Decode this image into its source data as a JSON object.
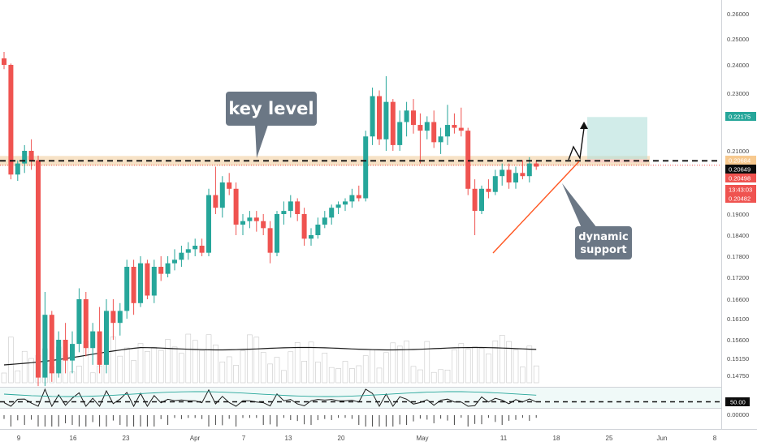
{
  "colors": {
    "up": "#26a69a",
    "down": "#ef5350",
    "callout": "#6b7785",
    "zone": "#f7e2c6",
    "target": "#b2dfdb",
    "trend": "#ff5722",
    "price_badge": "#0c0c0c",
    "red_badge": "#ef5350",
    "teal_badge": "#26a69a"
  },
  "annotations": {
    "key_level": "key level",
    "dynamic_support_1": "dynamic",
    "dynamic_support_2": "support"
  },
  "price_axis": {
    "ticks": [
      "0.26000",
      "0.25000",
      "0.24000",
      "0.23000",
      "0.21000",
      "0.19000",
      "0.18400",
      "0.17800",
      "0.17200",
      "0.16600",
      "0.16100",
      "0.15600",
      "0.15150",
      "0.14750"
    ],
    "badges": {
      "target": "0.22175",
      "key_level": "0.20684",
      "last_price": "0.20649",
      "red_1": "0.20498",
      "countdown": "13:43:03",
      "red_2": "0.20482"
    }
  },
  "indicator": {
    "level_label": "50.00",
    "zero_label": "0.00000"
  },
  "time_axis": {
    "labels": [
      "9",
      "16",
      "23",
      "Apr",
      "7",
      "13",
      "20",
      "May",
      "11",
      "18",
      "25",
      "Jun",
      "8"
    ]
  },
  "chart_data": {
    "type": "candlestick",
    "key_level": 0.20684,
    "series": [
      {
        "date": "Mar 7",
        "o": 0.2425,
        "h": 0.245,
        "l": 0.2385,
        "c": 0.24
      },
      {
        "date": "Mar 8",
        "o": 0.24,
        "h": 0.2405,
        "l": 0.201,
        "c": 0.2025
      },
      {
        "date": "Mar 9",
        "o": 0.2025,
        "h": 0.207,
        "l": 0.2005,
        "c": 0.206
      },
      {
        "date": "Mar 10",
        "o": 0.206,
        "h": 0.212,
        "l": 0.203,
        "c": 0.21
      },
      {
        "date": "Mar 11",
        "o": 0.21,
        "h": 0.214,
        "l": 0.204,
        "c": 0.207
      },
      {
        "date": "Mar 12",
        "o": 0.207,
        "h": 0.2085,
        "l": 0.145,
        "c": 0.147
      },
      {
        "date": "Mar 13",
        "o": 0.147,
        "h": 0.168,
        "l": 0.145,
        "c": 0.162
      },
      {
        "date": "Mar 14",
        "o": 0.162,
        "h": 0.163,
        "l": 0.146,
        "c": 0.148
      },
      {
        "date": "Mar 15",
        "o": 0.148,
        "h": 0.158,
        "l": 0.147,
        "c": 0.156
      },
      {
        "date": "Mar 16",
        "o": 0.156,
        "h": 0.16,
        "l": 0.148,
        "c": 0.151
      },
      {
        "date": "Mar 17",
        "o": 0.151,
        "h": 0.158,
        "l": 0.148,
        "c": 0.155
      },
      {
        "date": "Mar 18",
        "o": 0.155,
        "h": 0.169,
        "l": 0.153,
        "c": 0.166
      },
      {
        "date": "Mar 19",
        "o": 0.166,
        "h": 0.168,
        "l": 0.152,
        "c": 0.154
      },
      {
        "date": "Mar 20",
        "o": 0.154,
        "h": 0.16,
        "l": 0.15,
        "c": 0.158
      },
      {
        "date": "Mar 21",
        "o": 0.158,
        "h": 0.164,
        "l": 0.148,
        "c": 0.15
      },
      {
        "date": "Mar 22",
        "o": 0.15,
        "h": 0.166,
        "l": 0.148,
        "c": 0.163
      },
      {
        "date": "Mar 23",
        "o": 0.163,
        "h": 0.166,
        "l": 0.156,
        "c": 0.16
      },
      {
        "date": "Mar 24",
        "o": 0.16,
        "h": 0.165,
        "l": 0.157,
        "c": 0.163
      },
      {
        "date": "Mar 25",
        "o": 0.163,
        "h": 0.177,
        "l": 0.161,
        "c": 0.175
      },
      {
        "date": "Mar 26",
        "o": 0.175,
        "h": 0.177,
        "l": 0.162,
        "c": 0.165
      },
      {
        "date": "Mar 27",
        "o": 0.165,
        "h": 0.178,
        "l": 0.164,
        "c": 0.176
      },
      {
        "date": "Mar 28",
        "o": 0.176,
        "h": 0.177,
        "l": 0.166,
        "c": 0.167
      },
      {
        "date": "Mar 29",
        "o": 0.167,
        "h": 0.177,
        "l": 0.165,
        "c": 0.175
      },
      {
        "date": "Mar 30",
        "o": 0.175,
        "h": 0.178,
        "l": 0.171,
        "c": 0.173
      },
      {
        "date": "Mar 31",
        "o": 0.173,
        "h": 0.178,
        "l": 0.172,
        "c": 0.176
      },
      {
        "date": "Apr 1",
        "o": 0.176,
        "h": 0.18,
        "l": 0.174,
        "c": 0.177
      },
      {
        "date": "Apr 2",
        "o": 0.177,
        "h": 0.181,
        "l": 0.175,
        "c": 0.179
      },
      {
        "date": "Apr 3",
        "o": 0.179,
        "h": 0.182,
        "l": 0.177,
        "c": 0.18
      },
      {
        "date": "Apr 4",
        "o": 0.18,
        "h": 0.183,
        "l": 0.178,
        "c": 0.181
      },
      {
        "date": "Apr 5",
        "o": 0.181,
        "h": 0.183,
        "l": 0.178,
        "c": 0.179
      },
      {
        "date": "Apr 6",
        "o": 0.179,
        "h": 0.198,
        "l": 0.178,
        "c": 0.196
      },
      {
        "date": "Apr 7",
        "o": 0.196,
        "h": 0.205,
        "l": 0.19,
        "c": 0.192
      },
      {
        "date": "Apr 8",
        "o": 0.192,
        "h": 0.202,
        "l": 0.189,
        "c": 0.2
      },
      {
        "date": "Apr 9",
        "o": 0.2,
        "h": 0.203,
        "l": 0.196,
        "c": 0.198
      },
      {
        "date": "Apr 10",
        "o": 0.198,
        "h": 0.2,
        "l": 0.184,
        "c": 0.187
      },
      {
        "date": "Apr 11",
        "o": 0.187,
        "h": 0.19,
        "l": 0.184,
        "c": 0.188
      },
      {
        "date": "Apr 12",
        "o": 0.188,
        "h": 0.191,
        "l": 0.186,
        "c": 0.189
      },
      {
        "date": "Apr 13",
        "o": 0.189,
        "h": 0.191,
        "l": 0.185,
        "c": 0.188
      },
      {
        "date": "Apr 14",
        "o": 0.188,
        "h": 0.19,
        "l": 0.184,
        "c": 0.186
      },
      {
        "date": "Apr 15",
        "o": 0.186,
        "h": 0.188,
        "l": 0.176,
        "c": 0.179
      },
      {
        "date": "Apr 16",
        "o": 0.179,
        "h": 0.191,
        "l": 0.178,
        "c": 0.19
      },
      {
        "date": "Apr 17",
        "o": 0.19,
        "h": 0.194,
        "l": 0.187,
        "c": 0.191
      },
      {
        "date": "Apr 18",
        "o": 0.191,
        "h": 0.196,
        "l": 0.189,
        "c": 0.194
      },
      {
        "date": "Apr 19",
        "o": 0.194,
        "h": 0.195,
        "l": 0.188,
        "c": 0.19
      },
      {
        "date": "Apr 20",
        "o": 0.19,
        "h": 0.192,
        "l": 0.181,
        "c": 0.183
      },
      {
        "date": "Apr 21",
        "o": 0.183,
        "h": 0.186,
        "l": 0.181,
        "c": 0.184
      },
      {
        "date": "Apr 22",
        "o": 0.184,
        "h": 0.189,
        "l": 0.183,
        "c": 0.187
      },
      {
        "date": "Apr 23",
        "o": 0.187,
        "h": 0.191,
        "l": 0.186,
        "c": 0.189
      },
      {
        "date": "Apr 24",
        "o": 0.189,
        "h": 0.193,
        "l": 0.187,
        "c": 0.192
      },
      {
        "date": "Apr 25",
        "o": 0.192,
        "h": 0.194,
        "l": 0.19,
        "c": 0.193
      },
      {
        "date": "Apr 26",
        "o": 0.193,
        "h": 0.195,
        "l": 0.191,
        "c": 0.194
      },
      {
        "date": "Apr 27",
        "o": 0.194,
        "h": 0.198,
        "l": 0.192,
        "c": 0.196
      },
      {
        "date": "Apr 28",
        "o": 0.196,
        "h": 0.199,
        "l": 0.194,
        "c": 0.195
      },
      {
        "date": "Apr 29",
        "o": 0.195,
        "h": 0.217,
        "l": 0.194,
        "c": 0.215
      },
      {
        "date": "Apr 30",
        "o": 0.215,
        "h": 0.232,
        "l": 0.212,
        "c": 0.229
      },
      {
        "date": "May 1",
        "o": 0.229,
        "h": 0.231,
        "l": 0.212,
        "c": 0.214
      },
      {
        "date": "May 2",
        "o": 0.214,
        "h": 0.236,
        "l": 0.21,
        "c": 0.227
      },
      {
        "date": "May 3",
        "o": 0.227,
        "h": 0.228,
        "l": 0.21,
        "c": 0.212
      },
      {
        "date": "May 4",
        "o": 0.212,
        "h": 0.224,
        "l": 0.21,
        "c": 0.22
      },
      {
        "date": "May 5",
        "o": 0.22,
        "h": 0.227,
        "l": 0.215,
        "c": 0.224
      },
      {
        "date": "May 6",
        "o": 0.224,
        "h": 0.228,
        "l": 0.216,
        "c": 0.219
      },
      {
        "date": "May 7",
        "o": 0.219,
        "h": 0.223,
        "l": 0.206,
        "c": 0.217
      },
      {
        "date": "May 8",
        "o": 0.217,
        "h": 0.222,
        "l": 0.214,
        "c": 0.22
      },
      {
        "date": "May 9",
        "o": 0.22,
        "h": 0.224,
        "l": 0.211,
        "c": 0.213
      },
      {
        "date": "May 10",
        "o": 0.213,
        "h": 0.218,
        "l": 0.209,
        "c": 0.215
      },
      {
        "date": "May 11",
        "o": 0.215,
        "h": 0.226,
        "l": 0.212,
        "c": 0.219
      },
      {
        "date": "May 12",
        "o": 0.219,
        "h": 0.223,
        "l": 0.216,
        "c": 0.218
      },
      {
        "date": "May 13",
        "o": 0.218,
        "h": 0.225,
        "l": 0.215,
        "c": 0.217
      },
      {
        "date": "May 14",
        "o": 0.217,
        "h": 0.218,
        "l": 0.196,
        "c": 0.198
      },
      {
        "date": "May 15",
        "o": 0.198,
        "h": 0.201,
        "l": 0.184,
        "c": 0.191
      },
      {
        "date": "May 16",
        "o": 0.191,
        "h": 0.199,
        "l": 0.19,
        "c": 0.198
      },
      {
        "date": "May 17",
        "o": 0.198,
        "h": 0.201,
        "l": 0.195,
        "c": 0.197
      },
      {
        "date": "May 18",
        "o": 0.197,
        "h": 0.204,
        "l": 0.196,
        "c": 0.202
      },
      {
        "date": "May 19",
        "o": 0.202,
        "h": 0.206,
        "l": 0.199,
        "c": 0.204
      },
      {
        "date": "May 20",
        "o": 0.204,
        "h": 0.206,
        "l": 0.198,
        "c": 0.2
      },
      {
        "date": "May 21",
        "o": 0.2,
        "h": 0.205,
        "l": 0.198,
        "c": 0.203
      },
      {
        "date": "May 22",
        "o": 0.203,
        "h": 0.207,
        "l": 0.201,
        "c": 0.202
      },
      {
        "date": "May 23",
        "o": 0.202,
        "h": 0.208,
        "l": 0.2,
        "c": 0.206
      },
      {
        "date": "May 24",
        "o": 0.206,
        "h": 0.207,
        "l": 0.204,
        "c": 0.205
      }
    ]
  }
}
